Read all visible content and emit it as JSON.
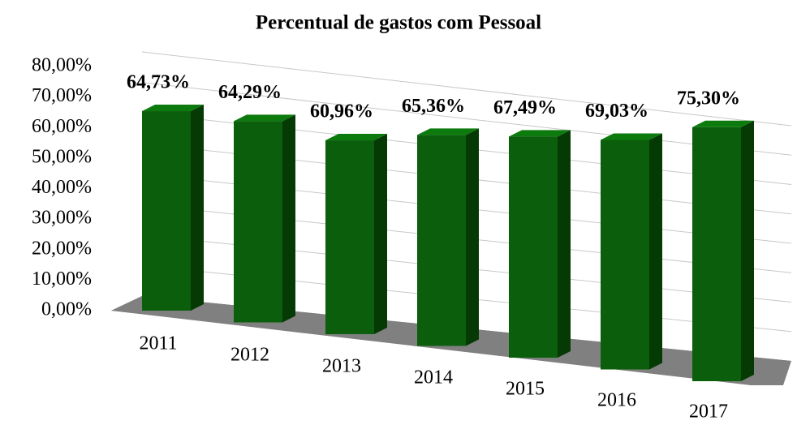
{
  "chart_data": {
    "type": "bar3d",
    "title": "Percentual de gastos com Pessoal",
    "categories": [
      "2011",
      "2012",
      "2013",
      "2014",
      "2015",
      "2016",
      "2017"
    ],
    "values": [
      64.73,
      64.29,
      60.96,
      65.36,
      67.49,
      69.03,
      75.3
    ],
    "value_labels": [
      "64,73%",
      "64,29%",
      "60,96%",
      "65,36%",
      "67,49%",
      "69,03%",
      "75,30%"
    ],
    "color": "#0b5e0b",
    "ylim": [
      0,
      80
    ],
    "yticks": [
      {
        "value": 0,
        "label": "0,00%"
      },
      {
        "value": 10,
        "label": "10,00%"
      },
      {
        "value": 20,
        "label": "20,00%"
      },
      {
        "value": 30,
        "label": "30,00%"
      },
      {
        "value": 40,
        "label": "40,00%"
      },
      {
        "value": 50,
        "label": "50,00%"
      },
      {
        "value": 60,
        "label": "60,00%"
      },
      {
        "value": 70,
        "label": "70,00%"
      },
      {
        "value": 80,
        "label": "80,00%"
      }
    ],
    "grid": true
  }
}
